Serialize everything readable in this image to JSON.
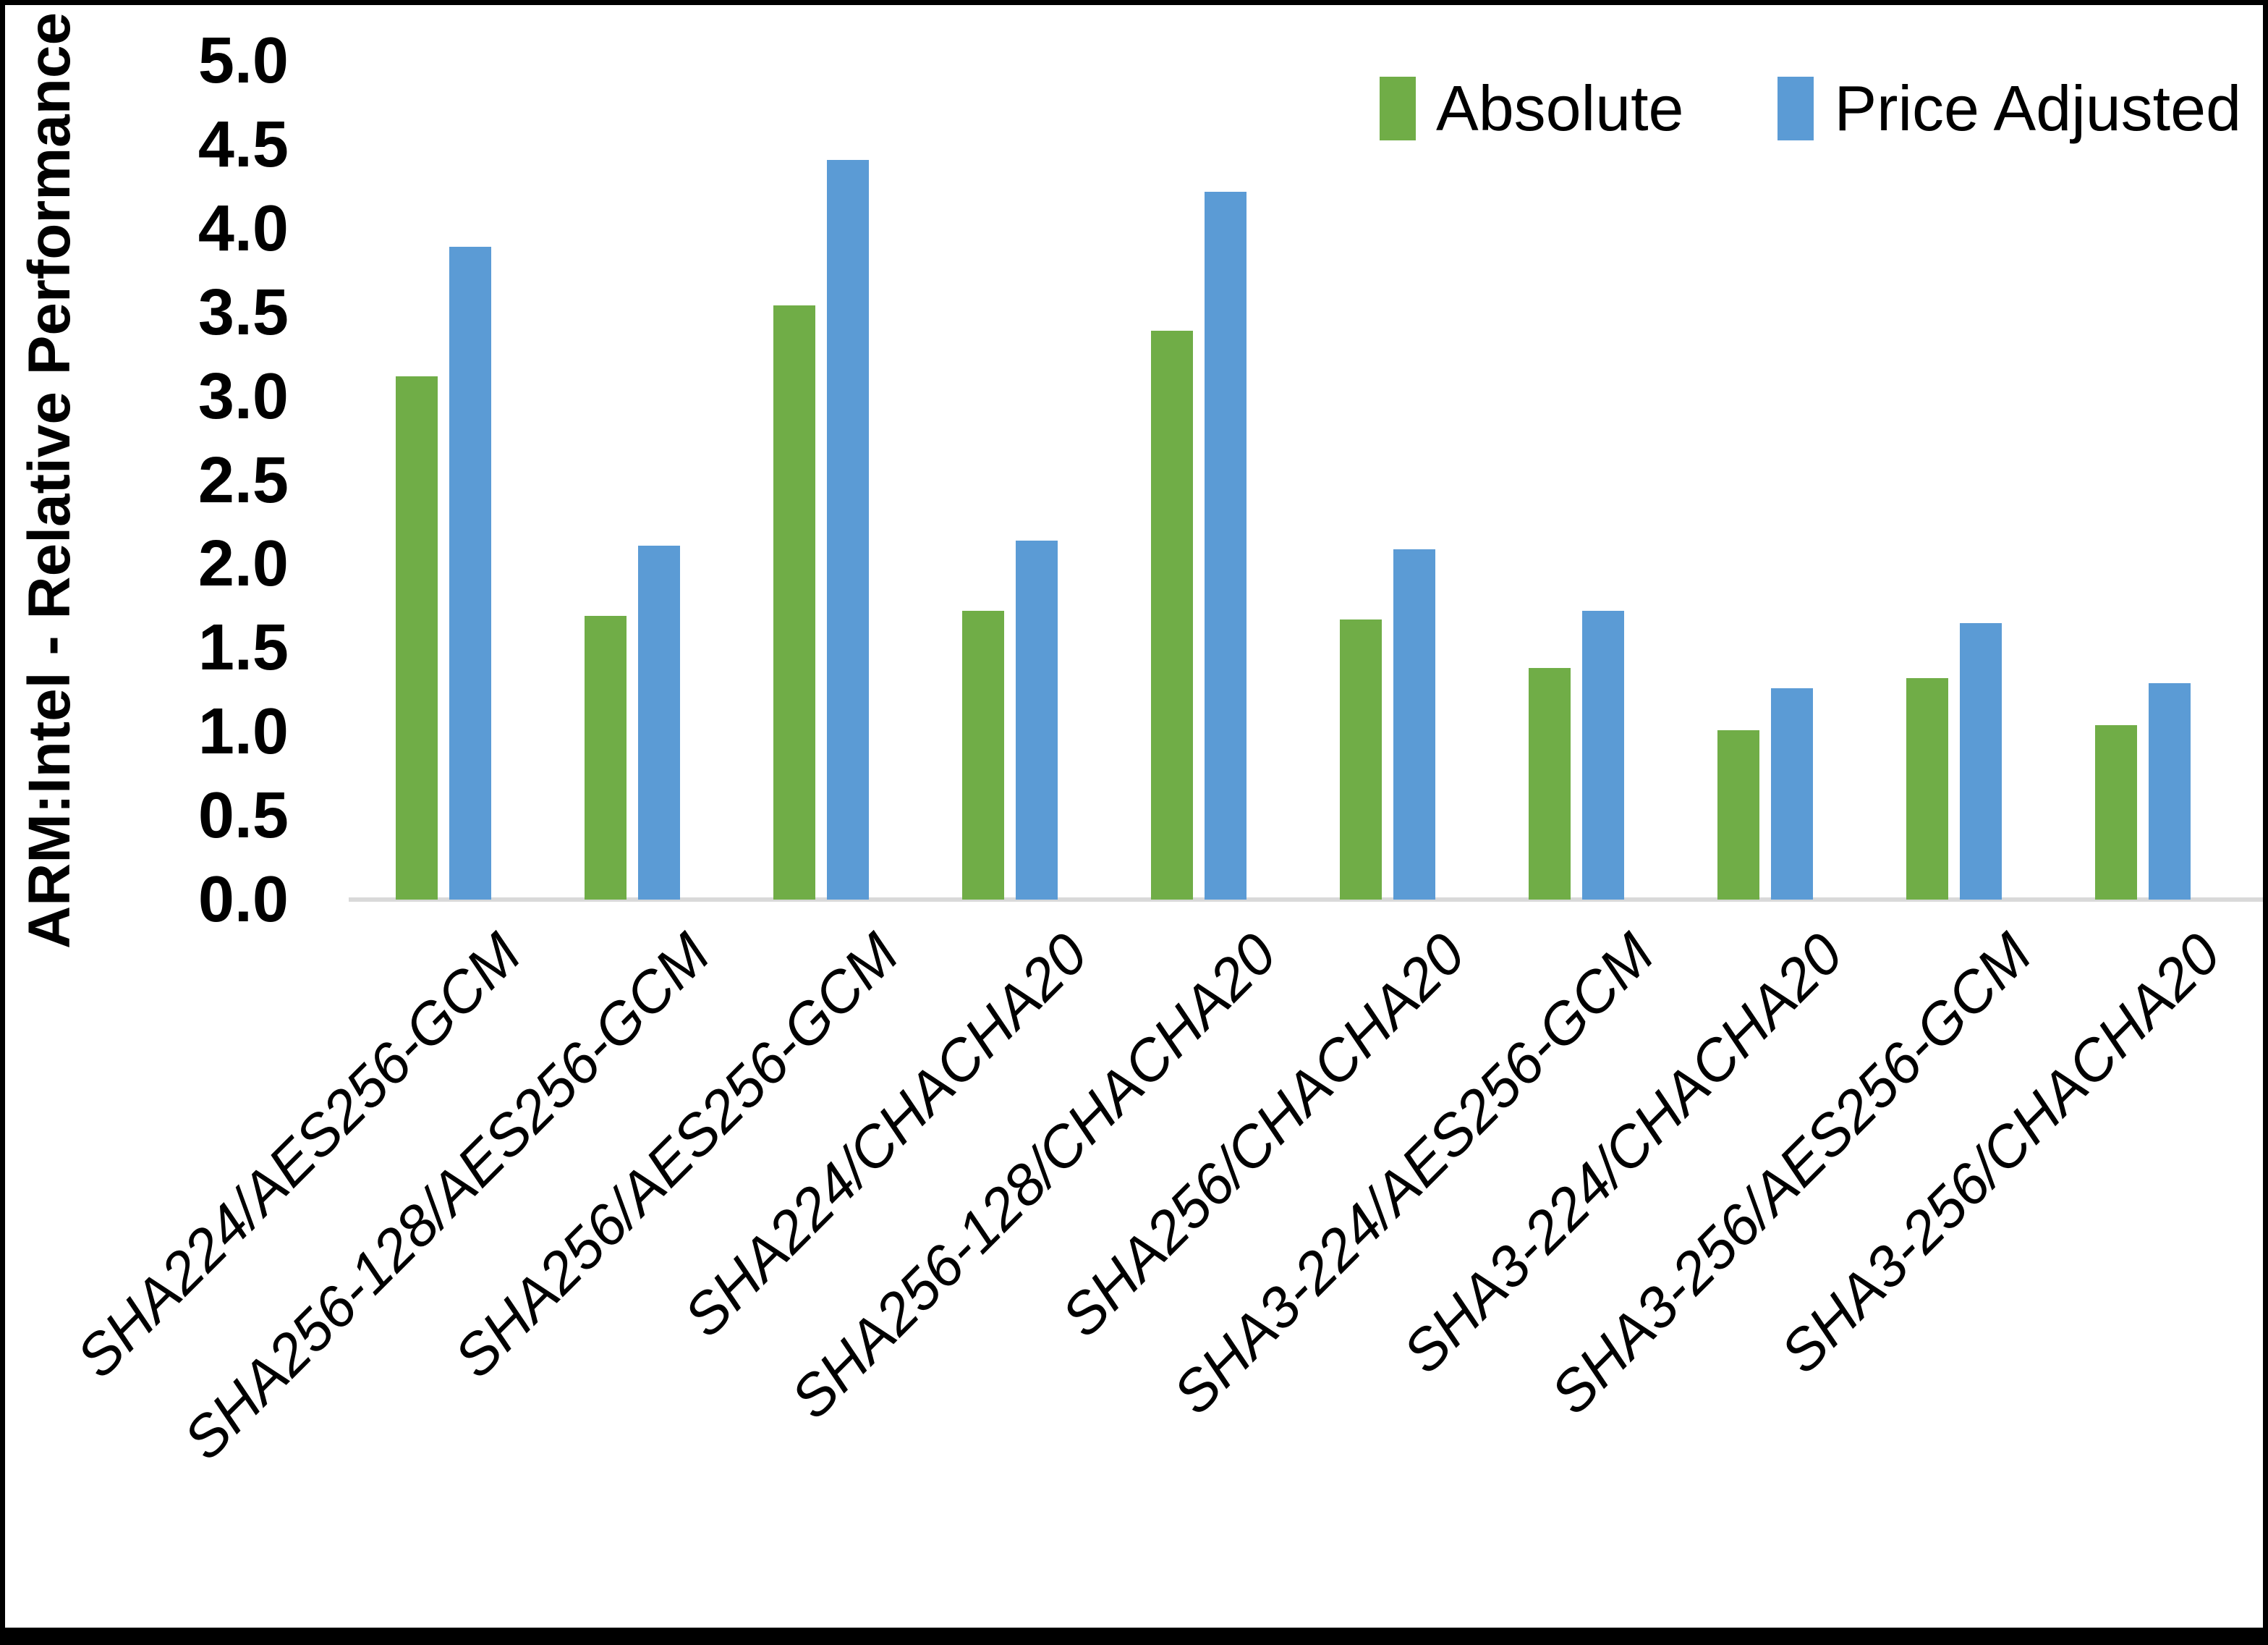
{
  "chart_data": {
    "type": "bar",
    "title": "",
    "xlabel": "",
    "ylabel": "ARM:Intel - Relative Performance",
    "ylim": [
      0,
      5
    ],
    "ytick_step": 0.5,
    "yticks": [
      "5.0",
      "4.5",
      "4.0",
      "3.5",
      "3.0",
      "2.5",
      "2.0",
      "1.5",
      "1.0",
      "0.5",
      "0.0"
    ],
    "grid": false,
    "legend_position": "top-right",
    "axis_line_color": "#d9d9d9",
    "categories": [
      "SHA224/AES256-GCM",
      "SHA256-128/AES256-GCM",
      "SHA256/AES256-GCM",
      "SHA224/CHACHA20",
      "SHA256-128/CHACHA20",
      "SHA256/CHACHA20",
      "SHA3-224/AES256-GCM",
      "SHA3-224/CHACHA20",
      "SHA3-256/AES256-GCM",
      "SHA3-256/CHACHA20"
    ],
    "series": [
      {
        "name": "Absolute",
        "color": "#70AD47",
        "values": [
          3.12,
          1.69,
          3.54,
          1.72,
          3.39,
          1.67,
          1.38,
          1.01,
          1.32,
          1.04
        ]
      },
      {
        "name": "Price Adjusted",
        "color": "#5B9BD5",
        "values": [
          3.89,
          2.11,
          4.41,
          2.14,
          4.22,
          2.09,
          1.72,
          1.26,
          1.65,
          1.29
        ]
      }
    ],
    "legend": [
      {
        "name": "Absolute",
        "color": "#70AD47"
      },
      {
        "name": "Price Adjusted",
        "color": "#5B9BD5"
      }
    ]
  }
}
